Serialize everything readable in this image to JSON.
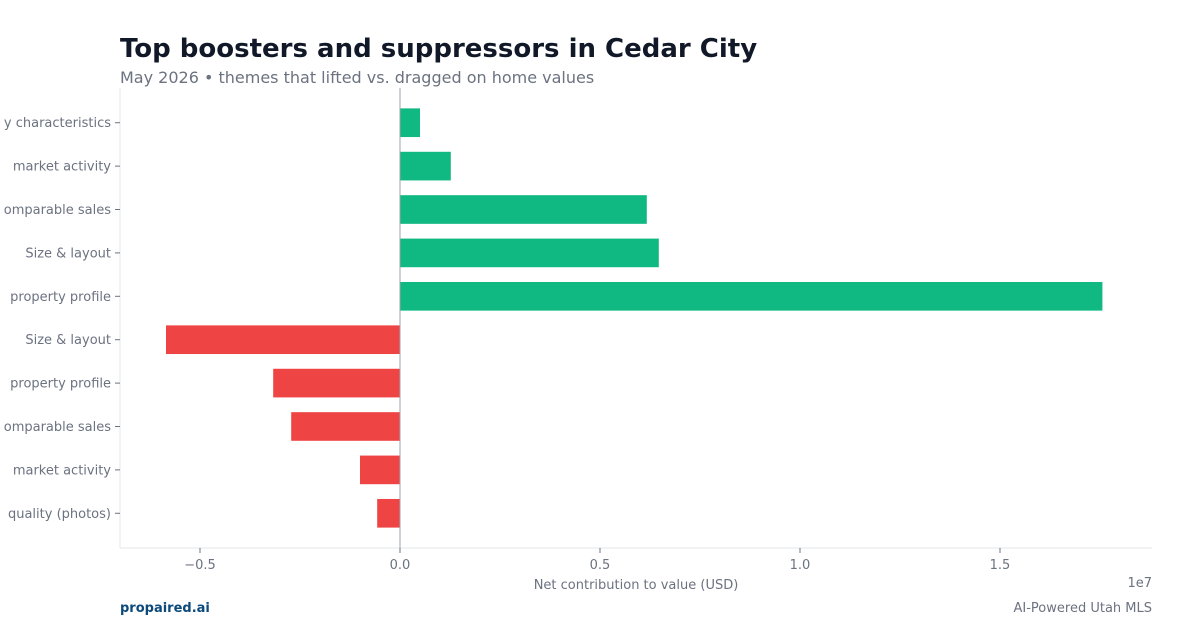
{
  "header": {
    "title": "Top boosters and suppressors in Cedar City",
    "subtitle": "May 2026 • themes that lifted vs. dragged on home values"
  },
  "footer": {
    "brand": "propaired.ai",
    "tagline": "AI-Powered Utah MLS"
  },
  "colors": {
    "positive": "#10b981",
    "negative": "#ef4444",
    "title": "#111827",
    "muted": "#6b7280",
    "brand": "#0b4a7a"
  },
  "chart_data": {
    "type": "bar",
    "orientation": "horizontal",
    "title": "Top boosters and suppressors in Cedar City",
    "subtitle": "May 2026 • themes that lifted vs. dragged on home values",
    "xlabel": "Net contribution to value (USD)",
    "ylabel": "",
    "x_scale_label": "1e7",
    "x_scale": 10000000,
    "xlim": [
      -7000000,
      18800000
    ],
    "xticks": [
      -5000000,
      0,
      5000000,
      10000000,
      15000000
    ],
    "xtick_labels": [
      "−0.5",
      "0.0",
      "0.5",
      "1.0",
      "1.5"
    ],
    "grid": false,
    "categories": [
      "Property characteristics",
      "Local market activity",
      "Comparable sales",
      "Size & layout",
      "Overall property profile",
      "Size & layout",
      "Overall property profile",
      "Comparable sales",
      "Local market activity",
      "Listing quality (photos)"
    ],
    "visible_labels": [
      "y characteristics",
      "market activity",
      "omparable sales",
      "Size & layout",
      "property profile",
      "Size & layout",
      "property profile",
      "omparable sales",
      "market activity",
      "quality (photos)"
    ],
    "values": [
      500000,
      1270000,
      6170000,
      6470000,
      17560000,
      -5850000,
      -3170000,
      -2720000,
      -1000000,
      -570000
    ]
  }
}
